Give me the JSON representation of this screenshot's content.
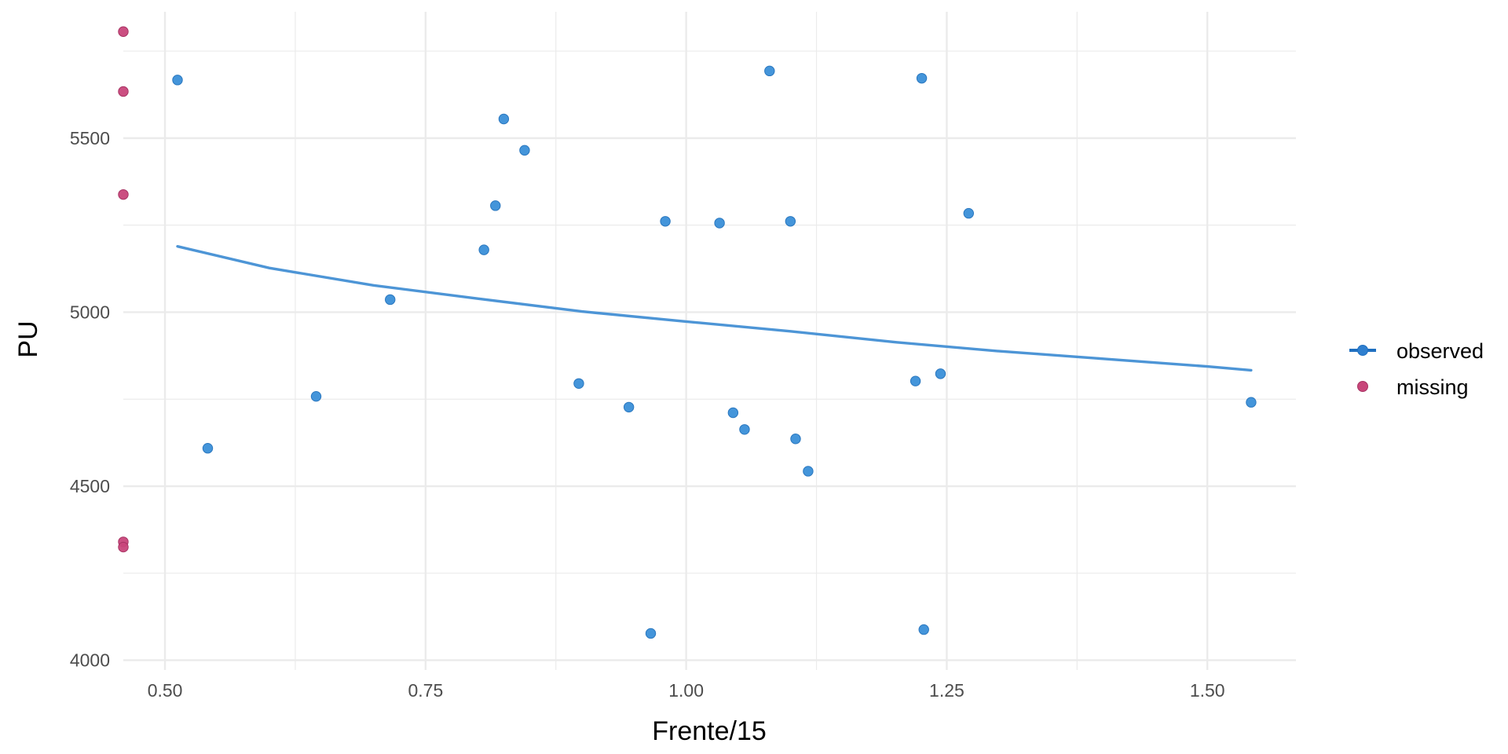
{
  "chart_data": {
    "type": "scatter",
    "xlabel": "Frente/15",
    "ylabel": "PU",
    "xlim": [
      0.46,
      1.585
    ],
    "ylim": [
      3972,
      5863
    ],
    "x_ticks": [
      0.5,
      0.75,
      1.0,
      1.25,
      1.5
    ],
    "x_tick_labels": [
      "0.50",
      "0.75",
      "1.00",
      "1.25",
      "1.50"
    ],
    "x_minor_ticks": [
      0.625,
      0.875,
      1.125,
      1.375
    ],
    "y_ticks": [
      4000,
      4500,
      5000,
      5500
    ],
    "y_tick_labels": [
      "4000",
      "4500",
      "5000",
      "5500"
    ],
    "y_minor_ticks": [
      4250,
      4750,
      5250,
      5750
    ],
    "grid": true,
    "legend_position": "right",
    "colors": {
      "observed": "#3a8fd8",
      "observed_stroke": "#2a77bf",
      "missing": "#c8467a",
      "missing_stroke": "#a83464",
      "trend": "#4d95d6",
      "grid": "#ebebeb"
    },
    "series": [
      {
        "name": "observed",
        "kind": "points",
        "points": [
          {
            "x": 0.512,
            "y": 5667
          },
          {
            "x": 0.541,
            "y": 4609
          },
          {
            "x": 0.645,
            "y": 4758
          },
          {
            "x": 0.716,
            "y": 5036
          },
          {
            "x": 0.806,
            "y": 5179
          },
          {
            "x": 0.817,
            "y": 5306
          },
          {
            "x": 0.825,
            "y": 5555
          },
          {
            "x": 0.845,
            "y": 5465
          },
          {
            "x": 0.897,
            "y": 4795
          },
          {
            "x": 0.945,
            "y": 4727
          },
          {
            "x": 0.966,
            "y": 4077
          },
          {
            "x": 0.98,
            "y": 5261
          },
          {
            "x": 1.032,
            "y": 5256
          },
          {
            "x": 1.045,
            "y": 4711
          },
          {
            "x": 1.056,
            "y": 4663
          },
          {
            "x": 1.08,
            "y": 5693
          },
          {
            "x": 1.1,
            "y": 5261
          },
          {
            "x": 1.105,
            "y": 4636
          },
          {
            "x": 1.117,
            "y": 4543
          },
          {
            "x": 1.22,
            "y": 4802
          },
          {
            "x": 1.226,
            "y": 5672
          },
          {
            "x": 1.228,
            "y": 4088
          },
          {
            "x": 1.244,
            "y": 4823
          },
          {
            "x": 1.271,
            "y": 5284
          },
          {
            "x": 1.542,
            "y": 4741
          }
        ]
      },
      {
        "name": "missing",
        "kind": "points",
        "points": [
          {
            "x": 0.46,
            "y": 5806
          },
          {
            "x": 0.46,
            "y": 5634
          },
          {
            "x": 0.46,
            "y": 5338
          },
          {
            "x": 0.46,
            "y": 4340
          },
          {
            "x": 0.46,
            "y": 4325
          }
        ]
      },
      {
        "name": "observed",
        "kind": "trend",
        "points": [
          {
            "x": 0.512,
            "y": 5189
          },
          {
            "x": 0.6,
            "y": 5127
          },
          {
            "x": 0.7,
            "y": 5077
          },
          {
            "x": 0.8,
            "y": 5039
          },
          {
            "x": 0.9,
            "y": 5002
          },
          {
            "x": 1.0,
            "y": 4973
          },
          {
            "x": 1.1,
            "y": 4945
          },
          {
            "x": 1.2,
            "y": 4914
          },
          {
            "x": 1.3,
            "y": 4888
          },
          {
            "x": 1.4,
            "y": 4866
          },
          {
            "x": 1.5,
            "y": 4844
          },
          {
            "x": 1.542,
            "y": 4833
          }
        ]
      }
    ],
    "legend": [
      {
        "label": "observed",
        "symbol": "line-point"
      },
      {
        "label": "missing",
        "symbol": "point"
      }
    ]
  }
}
